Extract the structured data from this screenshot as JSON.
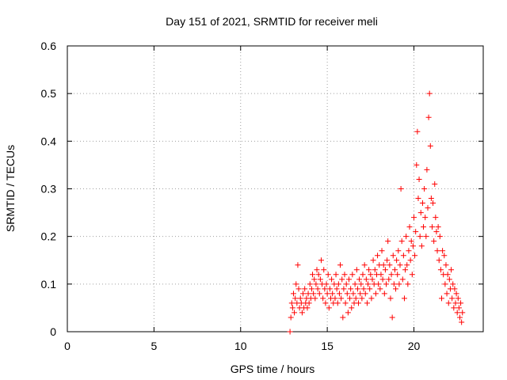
{
  "chart_data": {
    "type": "scatter",
    "title": "Day 151 of 2021, SRMTID for receiver meli",
    "xlabel": "GPS time / hours",
    "ylabel": "SRMTID / TECUs",
    "xlim": [
      0,
      24
    ],
    "ylim": [
      0,
      0.6
    ],
    "x_ticks": [
      0,
      5,
      10,
      15,
      20
    ],
    "x_tick_labels": [
      "0",
      "5",
      "10",
      "15",
      "20"
    ],
    "y_ticks": [
      0,
      0.1,
      0.2,
      0.3,
      0.4,
      0.5,
      0.6
    ],
    "y_tick_labels": [
      "0",
      "0.1",
      "0.2",
      "0.3",
      "0.4",
      "0.5",
      "0.6"
    ],
    "grid": true,
    "marker": "+",
    "color": "#ff0000",
    "series": [
      {
        "name": "SRMTID",
        "points": [
          [
            12.85,
            0.0
          ],
          [
            12.9,
            0.03
          ],
          [
            12.95,
            0.06
          ],
          [
            13.0,
            0.05
          ],
          [
            13.05,
            0.08
          ],
          [
            13.1,
            0.04
          ],
          [
            13.15,
            0.07
          ],
          [
            13.2,
            0.1
          ],
          [
            13.25,
            0.06
          ],
          [
            13.3,
            0.14
          ],
          [
            13.35,
            0.09
          ],
          [
            13.4,
            0.05
          ],
          [
            13.45,
            0.07
          ],
          [
            13.5,
            0.06
          ],
          [
            13.55,
            0.04
          ],
          [
            13.6,
            0.08
          ],
          [
            13.65,
            0.05
          ],
          [
            13.7,
            0.09
          ],
          [
            13.75,
            0.06
          ],
          [
            13.8,
            0.07
          ],
          [
            13.85,
            0.05
          ],
          [
            13.9,
            0.08
          ],
          [
            13.95,
            0.06
          ],
          [
            14.0,
            0.1
          ],
          [
            14.05,
            0.07
          ],
          [
            14.1,
            0.09
          ],
          [
            14.15,
            0.12
          ],
          [
            14.2,
            0.08
          ],
          [
            14.25,
            0.11
          ],
          [
            14.3,
            0.07
          ],
          [
            14.35,
            0.1
          ],
          [
            14.4,
            0.13
          ],
          [
            14.45,
            0.09
          ],
          [
            14.5,
            0.12
          ],
          [
            14.55,
            0.08
          ],
          [
            14.6,
            0.11
          ],
          [
            14.65,
            0.15
          ],
          [
            14.7,
            0.1
          ],
          [
            14.75,
            0.07
          ],
          [
            14.8,
            0.13
          ],
          [
            14.85,
            0.09
          ],
          [
            14.9,
            0.06
          ],
          [
            14.95,
            0.1
          ],
          [
            15.0,
            0.08
          ],
          [
            15.05,
            0.12
          ],
          [
            15.1,
            0.05
          ],
          [
            15.15,
            0.09
          ],
          [
            15.2,
            0.07
          ],
          [
            15.25,
            0.11
          ],
          [
            15.3,
            0.08
          ],
          [
            15.35,
            0.06
          ],
          [
            15.4,
            0.1
          ],
          [
            15.45,
            0.07
          ],
          [
            15.5,
            0.12
          ],
          [
            15.55,
            0.09
          ],
          [
            15.6,
            0.06
          ],
          [
            15.65,
            0.1
          ],
          [
            15.7,
            0.08
          ],
          [
            15.75,
            0.14
          ],
          [
            15.8,
            0.07
          ],
          [
            15.85,
            0.11
          ],
          [
            15.9,
            0.03
          ],
          [
            15.95,
            0.09
          ],
          [
            16.0,
            0.12
          ],
          [
            16.05,
            0.06
          ],
          [
            16.1,
            0.1
          ],
          [
            16.15,
            0.08
          ],
          [
            16.2,
            0.04
          ],
          [
            16.25,
            0.11
          ],
          [
            16.3,
            0.07
          ],
          [
            16.35,
            0.09
          ],
          [
            16.4,
            0.05
          ],
          [
            16.45,
            0.12
          ],
          [
            16.5,
            0.08
          ],
          [
            16.55,
            0.06
          ],
          [
            16.6,
            0.1
          ],
          [
            16.65,
            0.07
          ],
          [
            16.7,
            0.13
          ],
          [
            16.75,
            0.09
          ],
          [
            16.8,
            0.06
          ],
          [
            16.85,
            0.11
          ],
          [
            16.9,
            0.08
          ],
          [
            16.95,
            0.1
          ],
          [
            17.0,
            0.07
          ],
          [
            17.05,
            0.12
          ],
          [
            17.1,
            0.09
          ],
          [
            17.15,
            0.14
          ],
          [
            17.2,
            0.08
          ],
          [
            17.25,
            0.11
          ],
          [
            17.3,
            0.06
          ],
          [
            17.35,
            0.1
          ],
          [
            17.4,
            0.13
          ],
          [
            17.45,
            0.09
          ],
          [
            17.5,
            0.12
          ],
          [
            17.55,
            0.07
          ],
          [
            17.6,
            0.11
          ],
          [
            17.65,
            0.15
          ],
          [
            17.7,
            0.1
          ],
          [
            17.75,
            0.13
          ],
          [
            17.8,
            0.08
          ],
          [
            17.85,
            0.12
          ],
          [
            17.9,
            0.16
          ],
          [
            17.95,
            0.1
          ],
          [
            18.0,
            0.14
          ],
          [
            18.05,
            0.09
          ],
          [
            18.1,
            0.12
          ],
          [
            18.15,
            0.17
          ],
          [
            18.2,
            0.11
          ],
          [
            18.25,
            0.14
          ],
          [
            18.3,
            0.08
          ],
          [
            18.35,
            0.13
          ],
          [
            18.4,
            0.1
          ],
          [
            18.45,
            0.15
          ],
          [
            18.5,
            0.19
          ],
          [
            18.55,
            0.11
          ],
          [
            18.6,
            0.14
          ],
          [
            18.65,
            0.07
          ],
          [
            18.7,
            0.12
          ],
          [
            18.75,
            0.03
          ],
          [
            18.8,
            0.16
          ],
          [
            18.85,
            0.1
          ],
          [
            18.9,
            0.13
          ],
          [
            18.95,
            0.09
          ],
          [
            19.0,
            0.15
          ],
          [
            19.05,
            0.12
          ],
          [
            19.1,
            0.17
          ],
          [
            19.15,
            0.1
          ],
          [
            19.2,
            0.14
          ],
          [
            19.25,
            0.3
          ],
          [
            19.3,
            0.19
          ],
          [
            19.35,
            0.11
          ],
          [
            19.4,
            0.16
          ],
          [
            19.45,
            0.07
          ],
          [
            19.5,
            0.13
          ],
          [
            19.55,
            0.2
          ],
          [
            19.6,
            0.14
          ],
          [
            19.65,
            0.1
          ],
          [
            19.7,
            0.17
          ],
          [
            19.75,
            0.22
          ],
          [
            19.8,
            0.15
          ],
          [
            19.85,
            0.19
          ],
          [
            19.9,
            0.12
          ],
          [
            19.95,
            0.18
          ],
          [
            20.0,
            0.24
          ],
          [
            20.05,
            0.16
          ],
          [
            20.1,
            0.21
          ],
          [
            20.15,
            0.35
          ],
          [
            20.2,
            0.42
          ],
          [
            20.25,
            0.28
          ],
          [
            20.3,
            0.32
          ],
          [
            20.35,
            0.2
          ],
          [
            20.4,
            0.25
          ],
          [
            20.45,
            0.18
          ],
          [
            20.5,
            0.27
          ],
          [
            20.55,
            0.22
          ],
          [
            20.6,
            0.3
          ],
          [
            20.65,
            0.24
          ],
          [
            20.7,
            0.2
          ],
          [
            20.75,
            0.34
          ],
          [
            20.8,
            0.26
          ],
          [
            20.85,
            0.45
          ],
          [
            20.9,
            0.5
          ],
          [
            20.95,
            0.39
          ],
          [
            21.0,
            0.28
          ],
          [
            21.05,
            0.22
          ],
          [
            21.1,
            0.27
          ],
          [
            21.15,
            0.19
          ],
          [
            21.2,
            0.31
          ],
          [
            21.25,
            0.24
          ],
          [
            21.3,
            0.21
          ],
          [
            21.35,
            0.17
          ],
          [
            21.4,
            0.22
          ],
          [
            21.45,
            0.15
          ],
          [
            21.5,
            0.2
          ],
          [
            21.55,
            0.13
          ],
          [
            21.6,
            0.07
          ],
          [
            21.65,
            0.17
          ],
          [
            21.7,
            0.12
          ],
          [
            21.75,
            0.16
          ],
          [
            21.8,
            0.1
          ],
          [
            21.85,
            0.14
          ],
          [
            21.9,
            0.08
          ],
          [
            21.95,
            0.12
          ],
          [
            22.0,
            0.06
          ],
          [
            22.05,
            0.11
          ],
          [
            22.1,
            0.09
          ],
          [
            22.15,
            0.13
          ],
          [
            22.2,
            0.07
          ],
          [
            22.25,
            0.1
          ],
          [
            22.3,
            0.05
          ],
          [
            22.35,
            0.09
          ],
          [
            22.4,
            0.06
          ],
          [
            22.45,
            0.08
          ],
          [
            22.5,
            0.04
          ],
          [
            22.55,
            0.07
          ],
          [
            22.6,
            0.05
          ],
          [
            22.65,
            0.03
          ],
          [
            22.7,
            0.06
          ],
          [
            22.75,
            0.02
          ],
          [
            22.8,
            0.04
          ]
        ]
      }
    ]
  }
}
